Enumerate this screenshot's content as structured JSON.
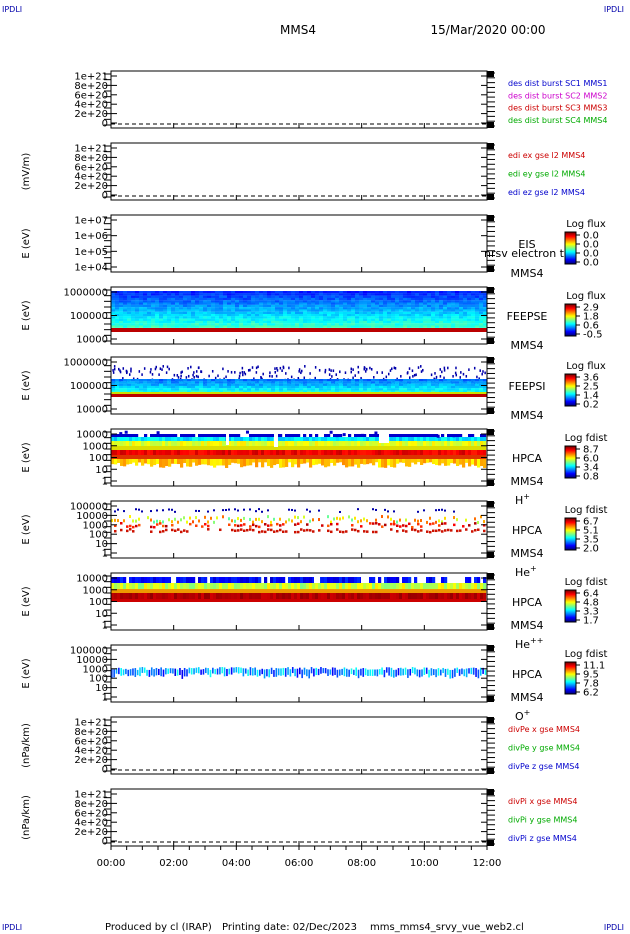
{
  "header": {
    "corner_tl": "IPDLI",
    "corner_tr": "IPDLI",
    "corner_bl": "IPDLI",
    "corner_br": "IPDLI",
    "spacecraft": "MMS4",
    "datetime": "15/Mar/2020 00:00"
  },
  "footer": {
    "produced": "Produced by cl (IRAP)",
    "printing": "Printing date: 02/Dec/2023",
    "script": "mms_mms4_srvy_vue_web2.cl"
  },
  "colors": {
    "blue": "#0000cc",
    "magenta": "#cc00cc",
    "red": "#cc0000",
    "green": "#00aa00"
  },
  "chart_data": [
    {
      "type": "line",
      "ylabel": "",
      "yticks": [
        "1e+21",
        "8e+20",
        "6e+20",
        "4e+20",
        "2e+20",
        "0"
      ],
      "ylim": [
        0,
        1e+21
      ],
      "series": [
        {
          "name": "des dist burst SC1 MMS1",
          "color": "#0000cc"
        },
        {
          "name": "des dist burst SC2 MMS2",
          "color": "#cc00cc"
        },
        {
          "name": "des dist burst SC3 MMS3",
          "color": "#cc0000"
        },
        {
          "name": "des dist burst SC4 MMS4",
          "color": "#00aa00"
        }
      ]
    },
    {
      "type": "line",
      "ylabel": "(mV/m)",
      "yticks": [
        "1e+21",
        "8e+20",
        "6e+20",
        "4e+20",
        "2e+20",
        "0"
      ],
      "ylim": [
        0,
        1e+21
      ],
      "series": [
        {
          "name": "edi ex gse l2 MMS4",
          "color": "#cc0000"
        },
        {
          "name": "edi ey gse l2 MMS4",
          "color": "#00aa00"
        },
        {
          "name": "edi ez gse l2 MMS4",
          "color": "#0000cc"
        }
      ]
    },
    {
      "type": "heatmap",
      "ylabel": "E (eV)",
      "yticks": [
        "1e+07",
        "1e+06",
        "1e+05",
        "1e+04"
      ],
      "ylim": [
        10000,
        10000000
      ],
      "scale": "log",
      "instrument": "EIS",
      "note": "nrsv electron to",
      "spacecraft": "MMS4",
      "cbar_title": "Log flux",
      "cbar_ticks": [
        "0.0",
        "0.0",
        "0.0",
        "0.0"
      ],
      "profile": "empty"
    },
    {
      "type": "heatmap",
      "ylabel": "E (eV)",
      "yticks": [
        "1000000",
        "100000",
        "10000"
      ],
      "ylim": [
        10000,
        1000000
      ],
      "scale": "log",
      "instrument": "FEEPSE",
      "spacecraft": "MMS4",
      "cbar_title": "Log flux",
      "cbar_ticks": [
        "2.9",
        "1.8",
        "0.6",
        "-0.5"
      ],
      "profile": "feepse"
    },
    {
      "type": "heatmap",
      "ylabel": "E (eV)",
      "yticks": [
        "1000000",
        "100000",
        "10000"
      ],
      "ylim": [
        10000,
        1000000
      ],
      "scale": "log",
      "instrument": "FEEPSI",
      "spacecraft": "MMS4",
      "cbar_title": "Log flux",
      "cbar_ticks": [
        "3.6",
        "2.5",
        "1.4",
        "0.2"
      ],
      "profile": "feepsi"
    },
    {
      "type": "heatmap",
      "ylabel": "E (eV)",
      "yticks": [
        "10000",
        "1000",
        "100",
        "10",
        "1"
      ],
      "ylim": [
        1,
        40000
      ],
      "scale": "log",
      "instrument": "HPCA",
      "spacecraft": "MMS4",
      "species": "H",
      "species_sup": "+",
      "cbar_title": "Log fdist",
      "cbar_ticks": [
        "8.7",
        "6.0",
        "3.4",
        "0.8"
      ],
      "profile": "hplus"
    },
    {
      "type": "heatmap",
      "ylabel": "E (eV)",
      "yticks": [
        "100000",
        "10000",
        "1000",
        "100",
        "10",
        "1"
      ],
      "ylim": [
        1,
        100000
      ],
      "scale": "log",
      "instrument": "HPCA",
      "spacecraft": "MMS4",
      "species": "He",
      "species_sup": "+",
      "cbar_title": "Log fdist",
      "cbar_ticks": [
        "6.7",
        "5.1",
        "3.5",
        "2.0"
      ],
      "profile": "heplus"
    },
    {
      "type": "heatmap",
      "ylabel": "E (eV)",
      "yticks": [
        "10000",
        "1000",
        "100",
        "10",
        "1"
      ],
      "ylim": [
        1,
        40000
      ],
      "scale": "log",
      "instrument": "HPCA",
      "spacecraft": "MMS4",
      "species": "He",
      "species_sup": "++",
      "cbar_title": "Log fdist",
      "cbar_ticks": [
        "6.4",
        "4.8",
        "3.3",
        "1.7"
      ],
      "profile": "hepp"
    },
    {
      "type": "heatmap",
      "ylabel": "E (eV)",
      "yticks": [
        "100000",
        "10000",
        "1000",
        "100",
        "10",
        "1"
      ],
      "ylim": [
        1,
        100000
      ],
      "scale": "log",
      "instrument": "HPCA",
      "spacecraft": "MMS4",
      "species": "O",
      "species_sup": "+",
      "cbar_title": "Log fdist",
      "cbar_ticks": [
        "11.1",
        "9.5",
        "7.8",
        "6.2"
      ],
      "profile": "oplus"
    },
    {
      "type": "line",
      "ylabel": "(nPa/km)",
      "yticks": [
        "1e+21",
        "8e+20",
        "6e+20",
        "4e+20",
        "2e+20",
        "0"
      ],
      "ylim": [
        0,
        1e+21
      ],
      "series": [
        {
          "name": "divPe x gse MMS4",
          "color": "#cc0000"
        },
        {
          "name": "divPe y gse MMS4",
          "color": "#00aa00"
        },
        {
          "name": "divPe z gse MMS4",
          "color": "#0000cc"
        }
      ]
    },
    {
      "type": "line",
      "ylabel": "(nPa/km)",
      "yticks": [
        "1e+21",
        "8e+20",
        "6e+20",
        "4e+20",
        "2e+20",
        "0"
      ],
      "ylim": [
        0,
        1e+21
      ],
      "series": [
        {
          "name": "divPi x gse MMS4",
          "color": "#cc0000"
        },
        {
          "name": "divPi y gse MMS4",
          "color": "#00aa00"
        },
        {
          "name": "divPi z gse MMS4",
          "color": "#0000cc"
        }
      ]
    }
  ],
  "xaxis": {
    "ticks": [
      "00:00",
      "02:00",
      "04:00",
      "06:00",
      "08:00",
      "10:00",
      "12:00"
    ]
  }
}
